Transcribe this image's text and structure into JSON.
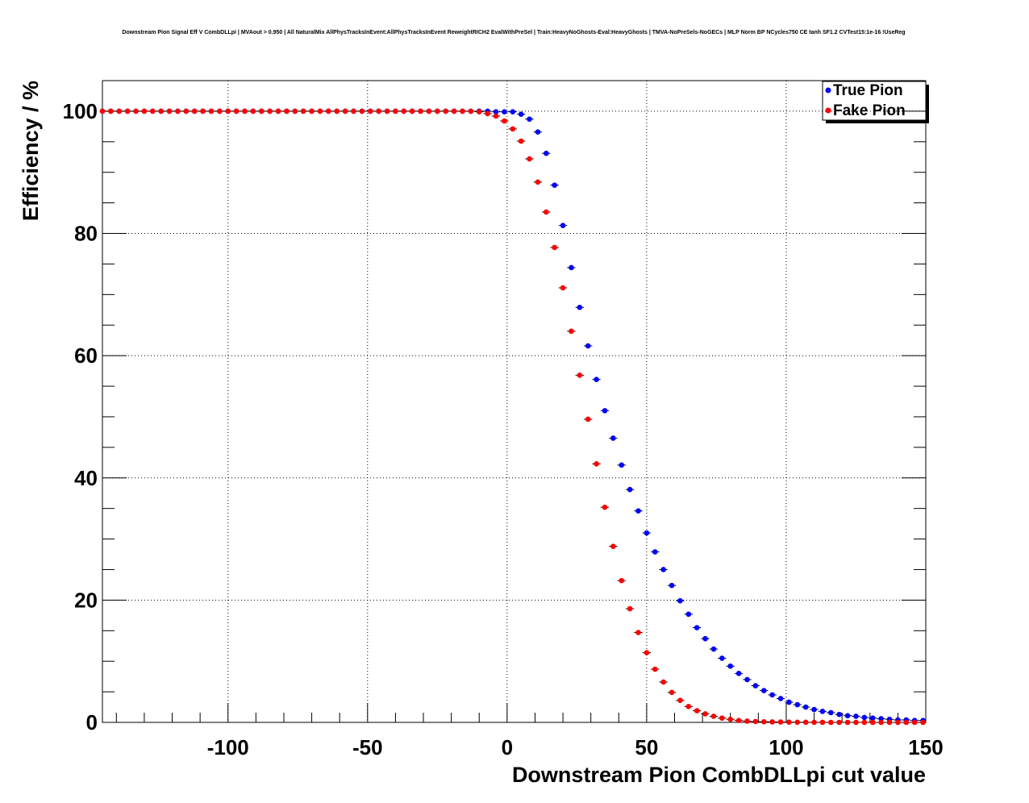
{
  "chart_data": {
    "type": "scatter",
    "title": "Downstream Pion Signal Eff V CombDLLpi | MVAout > 0.950 | All NaturalMix AllPhysTracksInEvent:AllPhysTracksInEvent ReweightRICH2 EvalWithPreSel | Train:HeavyNoGhosts-Eval:HeavyGhosts | TMVA-NoPreSels-NoGECs | MLP Norm BP NCycles750 CE tanh SF1.2 CVTest15:1e-16 !UseReg",
    "xlabel": "Downstream Pion CombDLLpi cut value",
    "ylabel": "Efficiency / %",
    "xlim": [
      -145,
      150
    ],
    "ylim": [
      0,
      105
    ],
    "xticks": [
      "-100",
      "-50",
      "0",
      "50",
      "100",
      "150"
    ],
    "yticks": [
      "0",
      "20",
      "40",
      "60",
      "80",
      "100"
    ],
    "grid": true,
    "legend_position": "top-right",
    "x": [
      -145,
      -142,
      -139,
      -136,
      -133,
      -130,
      -127,
      -124,
      -121,
      -118,
      -115,
      -112,
      -109,
      -106,
      -103,
      -100,
      -97,
      -94,
      -91,
      -88,
      -85,
      -82,
      -79,
      -76,
      -73,
      -70,
      -67,
      -64,
      -61,
      -58,
      -55,
      -52,
      -49,
      -46,
      -43,
      -40,
      -37,
      -34,
      -31,
      -28,
      -25,
      -22,
      -19,
      -16,
      -13,
      -10,
      -7,
      -4,
      -1,
      2,
      5,
      8,
      11,
      14,
      17,
      20,
      23,
      26,
      29,
      32,
      35,
      38,
      41,
      44,
      47,
      50,
      53,
      56,
      59,
      62,
      65,
      68,
      71,
      74,
      77,
      80,
      83,
      86,
      89,
      92,
      95,
      98,
      101,
      104,
      107,
      110,
      113,
      116,
      119,
      122,
      125,
      128,
      131,
      134,
      137,
      140,
      143,
      146,
      149
    ],
    "series": [
      {
        "name": "True Pion",
        "color": "#0000ff",
        "values": [
          100,
          100,
          100,
          100,
          100,
          100,
          100,
          100,
          100,
          100,
          100,
          100,
          100,
          100,
          100,
          100,
          100,
          100,
          100,
          100,
          100,
          100,
          100,
          100,
          100,
          100,
          100,
          100,
          100,
          100,
          100,
          100,
          100,
          100,
          100,
          100,
          100,
          100,
          100,
          100,
          100,
          100,
          100,
          100,
          100,
          100,
          100,
          99.9,
          99.9,
          99.9,
          99.5,
          98.7,
          96.6,
          93.1,
          87.9,
          81.3,
          74.4,
          67.9,
          61.6,
          56.1,
          51,
          46.5,
          42.1,
          38.1,
          34.6,
          31,
          27.9,
          25,
          22.4,
          19.9,
          17.7,
          15.5,
          13.7,
          12,
          10.5,
          9.2,
          8,
          7,
          6,
          5.2,
          4.5,
          3.9,
          3.3,
          2.9,
          2.5,
          2.1,
          1.8,
          1.6,
          1.3,
          1.1,
          1,
          0.8,
          0.7,
          0.6,
          0.5,
          0.4,
          0.4,
          0.3,
          0.3
        ]
      },
      {
        "name": "Fake Pion",
        "color": "#ff0000",
        "values": [
          100,
          100,
          100,
          100,
          100,
          100,
          100,
          100,
          100,
          100,
          100,
          100,
          100,
          100,
          100,
          100,
          100,
          100,
          100,
          100,
          100,
          100,
          100,
          100,
          100,
          100,
          100,
          100,
          100,
          100,
          100,
          100,
          100,
          100,
          100,
          100,
          100,
          100,
          100,
          100,
          100,
          100,
          100,
          100,
          100,
          99.9,
          99.6,
          99.2,
          98.4,
          97.1,
          95.1,
          92.2,
          88.4,
          83.5,
          77.7,
          71.1,
          64,
          56.8,
          49.6,
          42.3,
          35.2,
          28.8,
          23.2,
          18.6,
          14.7,
          11.4,
          8.7,
          6.6,
          4.9,
          3.6,
          2.6,
          1.9,
          1.4,
          1,
          0.7,
          0.5,
          0.3,
          0.2,
          0.15,
          0.1,
          0.08,
          0.06,
          0.04,
          0.03,
          0.02,
          0.01,
          0.01,
          0,
          0,
          0,
          0,
          0,
          0,
          0,
          0,
          0,
          0,
          0,
          0
        ]
      }
    ]
  }
}
